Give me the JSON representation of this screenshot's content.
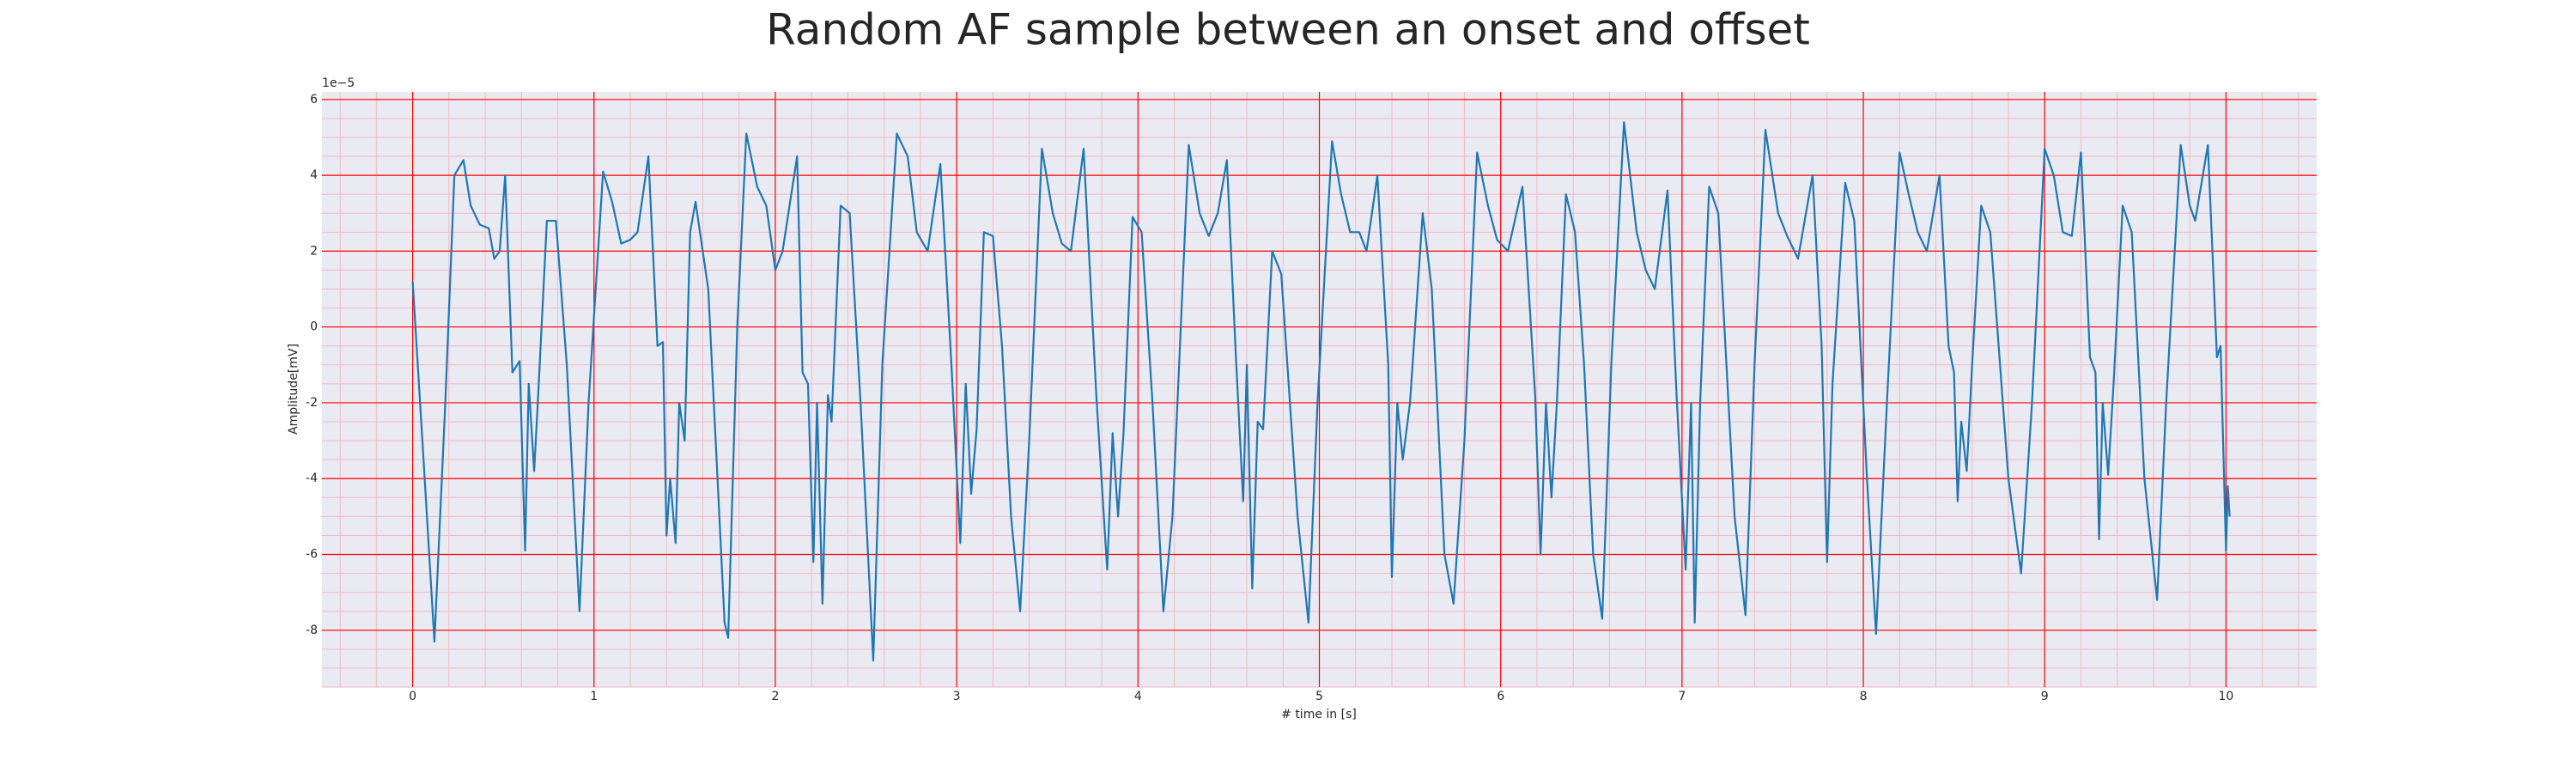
{
  "chart_data": {
    "type": "line",
    "title": "Random AF sample between an onset and offset",
    "xlabel": "# time in [s]",
    "ylabel": "Amplitude[mV]",
    "y_offset_label": "1e−5",
    "xlim": [
      -0.5,
      10.5
    ],
    "ylim": [
      -9.5,
      6.2
    ],
    "xticks": [
      0,
      1,
      2,
      3,
      4,
      5,
      6,
      7,
      8,
      9,
      10
    ],
    "yticks": [
      -8,
      -6,
      -4,
      -2,
      0,
      2,
      4,
      6
    ],
    "grid": true,
    "grid_color": "#ff0000",
    "minor_grid": {
      "xstep": 0.2,
      "ystep": 0.5,
      "color": "#f4b8c4"
    },
    "background": "#eaeaf2",
    "x": [
      0,
      0.06,
      0.12,
      0.18,
      0.23,
      0.28,
      0.32,
      0.37,
      0.42,
      0.45,
      0.48,
      0.51,
      0.55,
      0.59,
      0.62,
      0.64,
      0.67,
      0.69,
      0.74,
      0.79,
      0.85,
      0.92,
      0.97,
      1.05,
      1.1,
      1.15,
      1.2,
      1.24,
      1.3,
      1.35,
      1.38,
      1.4,
      1.42,
      1.45,
      1.47,
      1.5,
      1.53,
      1.56,
      1.63,
      1.72,
      1.74,
      1.79,
      1.84,
      1.9,
      1.95,
      2.0,
      2.04,
      2.12,
      2.15,
      2.18,
      2.21,
      2.23,
      2.26,
      2.29,
      2.31,
      2.36,
      2.41,
      2.47,
      2.54,
      2.59,
      2.67,
      2.73,
      2.78,
      2.84,
      2.91,
      2.97,
      3.02,
      3.05,
      3.08,
      3.11,
      3.15,
      3.2,
      3.25,
      3.3,
      3.35,
      3.4,
      3.47,
      3.53,
      3.58,
      3.63,
      3.7,
      3.77,
      3.83,
      3.86,
      3.89,
      3.92,
      3.97,
      4.02,
      4.08,
      4.14,
      4.19,
      4.28,
      4.34,
      4.39,
      4.44,
      4.49,
      4.54,
      4.58,
      4.6,
      4.63,
      4.66,
      4.69,
      4.74,
      4.79,
      4.88,
      4.94,
      4.99,
      5.07,
      5.12,
      5.17,
      5.22,
      5.26,
      5.32,
      5.38,
      5.4,
      5.43,
      5.46,
      5.5,
      5.57,
      5.62,
      5.69,
      5.74,
      5.8,
      5.87,
      5.93,
      5.98,
      6.04,
      6.12,
      6.19,
      6.22,
      6.25,
      6.28,
      6.31,
      6.36,
      6.41,
      6.46,
      6.51,
      6.56,
      6.61,
      6.68,
      6.75,
      6.8,
      6.85,
      6.92,
      6.97,
      7.02,
      7.05,
      7.07,
      7.1,
      7.15,
      7.2,
      7.29,
      7.35,
      7.4,
      7.46,
      7.53,
      7.58,
      7.64,
      7.72,
      7.77,
      7.8,
      7.83,
      7.9,
      7.95,
      8.02,
      8.07,
      8.13,
      8.2,
      8.25,
      8.3,
      8.35,
      8.42,
      8.47,
      8.5,
      8.52,
      8.54,
      8.57,
      8.6,
      8.65,
      8.7,
      8.8,
      8.87,
      8.93,
      9.0,
      9.05,
      9.1,
      9.15,
      9.2,
      9.25,
      9.28,
      9.3,
      9.32,
      9.35,
      9.38,
      9.43,
      9.48,
      9.55,
      9.62,
      9.67,
      9.75,
      9.8,
      9.83,
      9.9,
      9.95,
      9.97,
      10.0,
      10.01,
      10.02
    ],
    "series": [
      {
        "color": "#1f77b4",
        "values": [
          1.2,
          -3.5,
          -8.3,
          -2,
          4.0,
          4.4,
          3.2,
          2.7,
          2.6,
          1.8,
          2.0,
          4.0,
          -1.2,
          -0.9,
          -5.9,
          -1.5,
          -3.8,
          -2.0,
          2.8,
          2.8,
          -1.0,
          -7.5,
          -2,
          4.1,
          3.3,
          2.2,
          2.3,
          2.5,
          4.5,
          -0.5,
          -0.4,
          -5.5,
          -4.0,
          -5.7,
          -2.0,
          -3.0,
          2.5,
          3.3,
          1.0,
          -7.8,
          -8.2,
          0,
          5.1,
          3.7,
          3.2,
          1.5,
          2.0,
          4.5,
          -1.2,
          -1.5,
          -6.2,
          -2.0,
          -7.3,
          -1.8,
          -2.5,
          3.2,
          3.0,
          -2.0,
          -8.8,
          -1.0,
          5.1,
          4.5,
          2.5,
          2.0,
          4.3,
          -0.9,
          -5.7,
          -1.5,
          -4.4,
          -2.7,
          2.5,
          2.4,
          -0.5,
          -5,
          -7.5,
          -3,
          4.7,
          3.0,
          2.2,
          2.0,
          4.7,
          -1.8,
          -6.4,
          -2.8,
          -5.0,
          -2.8,
          2.9,
          2.5,
          -2,
          -7.5,
          -5,
          4.8,
          3.0,
          2.4,
          3.0,
          4.4,
          -0.8,
          -4.6,
          -1.0,
          -6.9,
          -2.5,
          -2.7,
          2.0,
          1.4,
          -5,
          -7.8,
          -2,
          4.9,
          3.5,
          2.5,
          2.5,
          2.0,
          4.0,
          -1.0,
          -6.6,
          -2.0,
          -3.5,
          -2.0,
          3.0,
          1.0,
          -6,
          -7.3,
          -3,
          4.6,
          3.2,
          2.3,
          2.0,
          3.7,
          -1.8,
          -6.0,
          -2.0,
          -4.5,
          -2.0,
          3.5,
          2.5,
          -1.0,
          -6.0,
          -7.7,
          -1.0,
          5.4,
          2.5,
          1.5,
          1.0,
          3.6,
          -1.8,
          -6.4,
          -2.0,
          -7.8,
          -2.0,
          3.7,
          3.0,
          -5,
          -7.6,
          -1.0,
          5.2,
          3.0,
          2.4,
          1.8,
          4.0,
          -0.5,
          -6.2,
          -1.5,
          3.8,
          2.8,
          -4,
          -8.1,
          -2,
          4.6,
          3.5,
          2.5,
          2.0,
          4.0,
          -0.5,
          -1.2,
          -4.6,
          -2.5,
          -3.8,
          -1.0,
          3.2,
          2.5,
          -4,
          -6.5,
          -2,
          4.7,
          4.0,
          2.5,
          2.4,
          4.6,
          -0.8,
          -1.2,
          -5.6,
          -2.0,
          -3.9,
          -1.5,
          3.2,
          2.5,
          -4,
          -7.2,
          -2,
          4.8,
          3.2,
          2.8,
          4.8,
          -0.8,
          -0.5,
          -5.9,
          -4.2,
          -5.0
        ]
      }
    ]
  }
}
